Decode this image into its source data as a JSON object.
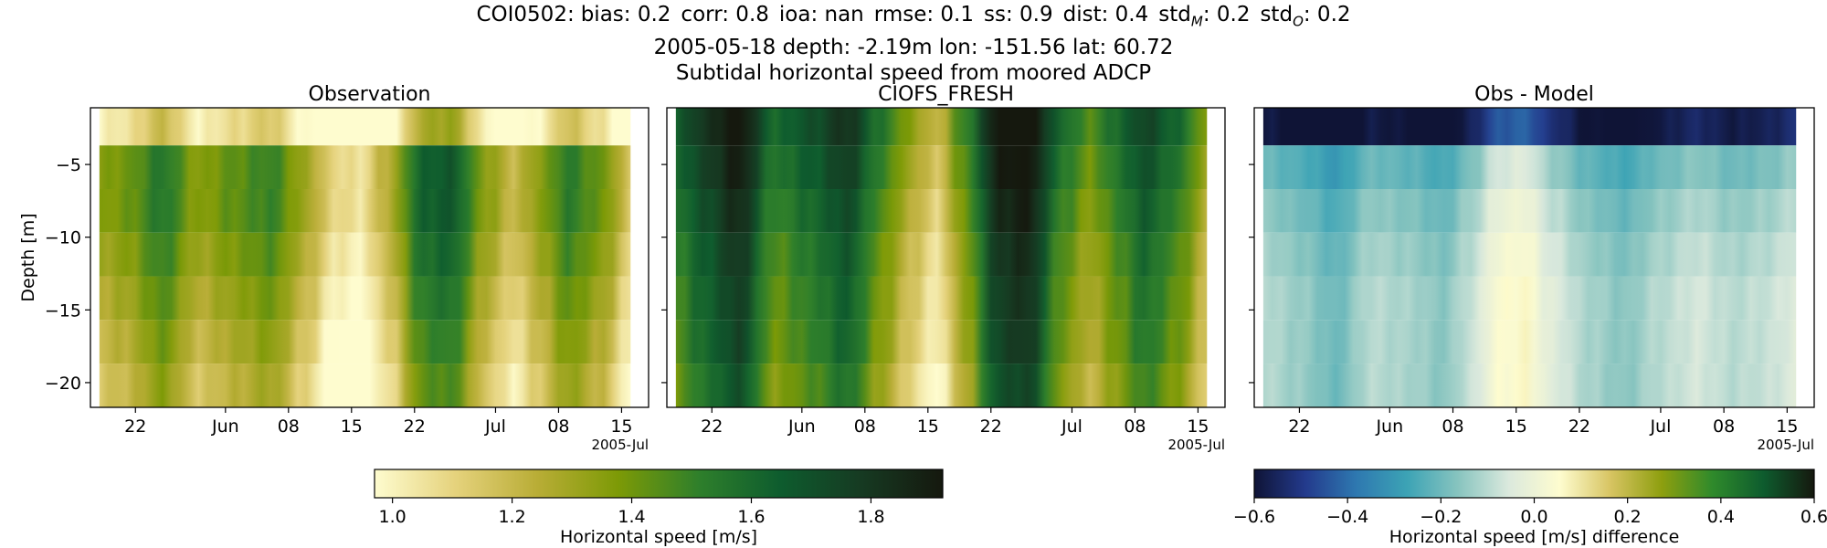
{
  "header": {
    "station": "COI0502",
    "stats": [
      {
        "name": "bias",
        "sub": "",
        "value": "0.2"
      },
      {
        "name": "corr",
        "sub": "",
        "value": "0.8"
      },
      {
        "name": "ioa",
        "sub": "",
        "value": "nan"
      },
      {
        "name": "rmse",
        "sub": "",
        "value": "0.1"
      },
      {
        "name": "ss",
        "sub": "",
        "value": "0.9"
      },
      {
        "name": "dist",
        "sub": "",
        "value": "0.4"
      },
      {
        "name": "std",
        "sub": "M",
        "value": "0.2"
      },
      {
        "name": "std",
        "sub": "O",
        "value": "0.2"
      }
    ],
    "line2": "2005-05-18 depth: -2.19m lon: -151.56 lat: 60.72",
    "line3": "Subtidal horizontal speed from moored ADCP"
  },
  "chart_data": [
    {
      "type": "heatmap",
      "title": "Observation",
      "ylabel": "Depth [m]",
      "yticks": [
        -5,
        -10,
        -15,
        -20
      ],
      "ylim": [
        -21.7,
        -1.1
      ],
      "xlim": [
        "2005-05-17",
        "2005-07-18"
      ],
      "xticks": [
        {
          "date": "2005-05-22",
          "label": "22"
        },
        {
          "date": "2005-06-01",
          "label": "Jun"
        },
        {
          "date": "2005-06-08",
          "label": "08"
        },
        {
          "date": "2005-06-15",
          "label": "15"
        },
        {
          "date": "2005-06-22",
          "label": "22"
        },
        {
          "date": "2005-07-01",
          "label": "Jul"
        },
        {
          "date": "2005-07-08",
          "label": "08"
        },
        {
          "date": "2005-07-15",
          "label": "15"
        }
      ],
      "offset_label": "2005-Jul",
      "data_start": "2005-05-18",
      "data_end": "2005-07-16",
      "depth_bins": [
        -2.19,
        -5.19,
        -8.19,
        -11.19,
        -14.19,
        -17.19,
        -20.19
      ],
      "colorbar": "speed",
      "time_profile": [
        {
          "date": "2005-05-18",
          "speed": 1.3
        },
        {
          "date": "2005-05-21",
          "speed": 1.35
        },
        {
          "date": "2005-05-25",
          "speed": 1.5
        },
        {
          "date": "2005-05-29",
          "speed": 1.3
        },
        {
          "date": "2005-06-02",
          "speed": 1.38
        },
        {
          "date": "2005-06-06",
          "speed": 1.45
        },
        {
          "date": "2005-06-10",
          "speed": 1.25
        },
        {
          "date": "2005-06-13",
          "speed": 1.05
        },
        {
          "date": "2005-06-16",
          "speed": 1.0
        },
        {
          "date": "2005-06-19",
          "speed": 1.2
        },
        {
          "date": "2005-06-23",
          "speed": 1.58
        },
        {
          "date": "2005-06-26",
          "speed": 1.62
        },
        {
          "date": "2005-06-30",
          "speed": 1.3
        },
        {
          "date": "2005-07-03",
          "speed": 1.15
        },
        {
          "date": "2005-07-06",
          "speed": 1.3
        },
        {
          "date": "2005-07-09",
          "speed": 1.48
        },
        {
          "date": "2005-07-13",
          "speed": 1.35
        },
        {
          "date": "2005-07-16",
          "speed": 1.1
        }
      ],
      "depth_offsets": [
        -0.3,
        0.05,
        0.05,
        0.0,
        -0.05,
        -0.1,
        -0.15
      ]
    },
    {
      "type": "heatmap",
      "title": "CIOFS_FRESH",
      "ylabel": "",
      "ylim": [
        -21.7,
        -1.1
      ],
      "xlim": [
        "2005-05-17",
        "2005-07-18"
      ],
      "xticks": [
        {
          "date": "2005-05-22",
          "label": "22"
        },
        {
          "date": "2005-06-01",
          "label": "Jun"
        },
        {
          "date": "2005-06-08",
          "label": "08"
        },
        {
          "date": "2005-06-15",
          "label": "15"
        },
        {
          "date": "2005-06-22",
          "label": "22"
        },
        {
          "date": "2005-07-01",
          "label": "Jul"
        },
        {
          "date": "2005-07-08",
          "label": "08"
        },
        {
          "date": "2005-07-15",
          "label": "15"
        }
      ],
      "offset_label": "2005-Jul",
      "data_start": "2005-05-18",
      "data_end": "2005-07-16",
      "depth_bins": [
        -2.19,
        -5.19,
        -8.19,
        -11.19,
        -14.19,
        -17.19,
        -20.19
      ],
      "colorbar": "speed",
      "time_profile": [
        {
          "date": "2005-05-18",
          "speed": 1.55
        },
        {
          "date": "2005-05-21",
          "speed": 1.7
        },
        {
          "date": "2005-05-25",
          "speed": 1.85
        },
        {
          "date": "2005-05-29",
          "speed": 1.5
        },
        {
          "date": "2005-06-02",
          "speed": 1.6
        },
        {
          "date": "2005-06-06",
          "speed": 1.72
        },
        {
          "date": "2005-06-10",
          "speed": 1.45
        },
        {
          "date": "2005-06-13",
          "speed": 1.25
        },
        {
          "date": "2005-06-16",
          "speed": 1.1
        },
        {
          "date": "2005-06-19",
          "speed": 1.4
        },
        {
          "date": "2005-06-23",
          "speed": 1.85
        },
        {
          "date": "2005-06-26",
          "speed": 1.9
        },
        {
          "date": "2005-06-30",
          "speed": 1.5
        },
        {
          "date": "2005-07-03",
          "speed": 1.35
        },
        {
          "date": "2005-07-06",
          "speed": 1.5
        },
        {
          "date": "2005-07-09",
          "speed": 1.65
        },
        {
          "date": "2005-07-13",
          "speed": 1.5
        },
        {
          "date": "2005-07-16",
          "speed": 1.25
        }
      ],
      "depth_offsets": [
        0.1,
        0.05,
        0.0,
        -0.05,
        -0.08,
        -0.1,
        -0.15
      ]
    },
    {
      "type": "heatmap",
      "title": "Obs - Model",
      "ylabel": "",
      "ylim": [
        -21.7,
        -1.1
      ],
      "xlim": [
        "2005-05-17",
        "2005-07-18"
      ],
      "xticks": [
        {
          "date": "2005-05-22",
          "label": "22"
        },
        {
          "date": "2005-06-01",
          "label": "Jun"
        },
        {
          "date": "2005-06-08",
          "label": "08"
        },
        {
          "date": "2005-06-15",
          "label": "15"
        },
        {
          "date": "2005-06-22",
          "label": "22"
        },
        {
          "date": "2005-07-01",
          "label": "Jul"
        },
        {
          "date": "2005-07-08",
          "label": "08"
        },
        {
          "date": "2005-07-15",
          "label": "15"
        }
      ],
      "offset_label": "2005-Jul",
      "data_start": "2005-05-18",
      "data_end": "2005-07-16",
      "depth_bins": [
        -2.19,
        -5.19,
        -8.19,
        -11.19,
        -14.19,
        -17.19,
        -20.19
      ],
      "colorbar": "difference",
      "time_profile": [
        {
          "date": "2005-05-18",
          "diff": -0.2
        },
        {
          "date": "2005-05-22",
          "diff": -0.24
        },
        {
          "date": "2005-05-26",
          "diff": -0.3
        },
        {
          "date": "2005-05-30",
          "diff": -0.2
        },
        {
          "date": "2005-06-03",
          "diff": -0.22
        },
        {
          "date": "2005-06-07",
          "diff": -0.26
        },
        {
          "date": "2005-06-10",
          "diff": -0.18
        },
        {
          "date": "2005-06-13",
          "diff": -0.06
        },
        {
          "date": "2005-06-16",
          "diff": -0.04
        },
        {
          "date": "2005-06-19",
          "diff": -0.14
        },
        {
          "date": "2005-06-23",
          "diff": -0.22
        },
        {
          "date": "2005-06-27",
          "diff": -0.26
        },
        {
          "date": "2005-07-01",
          "diff": -0.2
        },
        {
          "date": "2005-07-05",
          "diff": -0.16
        },
        {
          "date": "2005-07-09",
          "diff": -0.2
        },
        {
          "date": "2005-07-13",
          "diff": -0.18
        },
        {
          "date": "2005-07-16",
          "diff": -0.14
        }
      ],
      "depth_offsets": [
        -0.38,
        0.0,
        0.05,
        0.08,
        0.1,
        0.1,
        0.1
      ]
    }
  ],
  "colorbars": [
    {
      "id": "speed",
      "label": "Horizontal speed [m/s]",
      "range": [
        0.97,
        1.92
      ],
      "ticks": [
        {
          "v": 1.0,
          "t": "1.0"
        },
        {
          "v": 1.2,
          "t": "1.2"
        },
        {
          "v": 1.4,
          "t": "1.4"
        },
        {
          "v": 1.6,
          "t": "1.6"
        },
        {
          "v": 1.8,
          "t": "1.8"
        }
      ],
      "colors": [
        "#fefccf",
        "#e5d27c",
        "#b9ad36",
        "#7d9a06",
        "#2e7f2b",
        "#0e5c2e",
        "#163a22",
        "#15180e"
      ]
    },
    {
      "id": "difference",
      "label": "Horizontal speed [m/s] difference",
      "range": [
        -0.6,
        0.6
      ],
      "ticks": [
        {
          "v": -0.6,
          "t": "−0.6"
        },
        {
          "v": -0.4,
          "t": "−0.4"
        },
        {
          "v": -0.2,
          "t": "−0.2"
        },
        {
          "v": 0.0,
          "t": "0.0"
        },
        {
          "v": 0.2,
          "t": "0.2"
        },
        {
          "v": 0.4,
          "t": "0.4"
        },
        {
          "v": 0.6,
          "t": "0.6"
        }
      ],
      "colors": [
        "#0f1436",
        "#233a8c",
        "#2e78b0",
        "#3ca3b5",
        "#87c4bf",
        "#dbe9dd",
        "#fefccf",
        "#d7c462",
        "#8e9f0f",
        "#2f8a2b",
        "#0e5c2e",
        "#15180e"
      ]
    }
  ]
}
